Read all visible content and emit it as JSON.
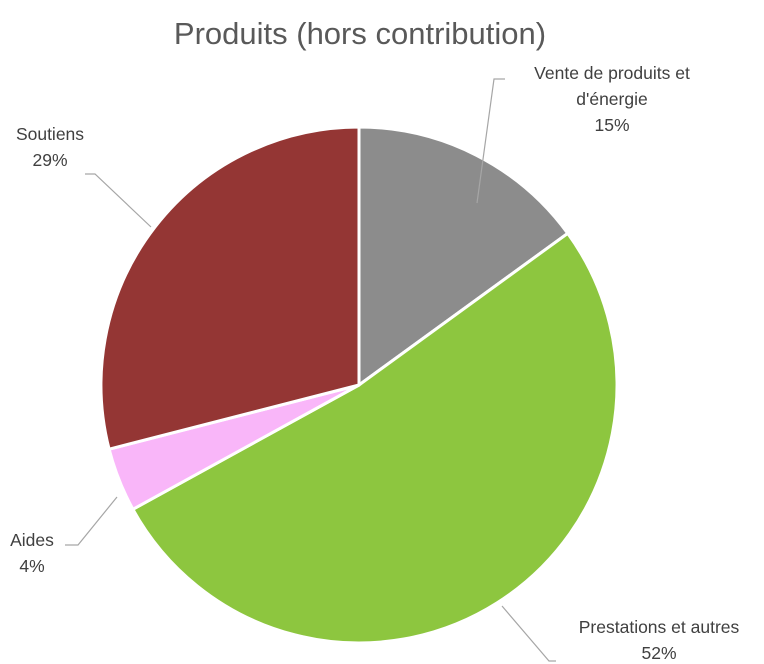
{
  "chart_data": {
    "type": "pie",
    "title": "Produits (hors contribution)",
    "slices": [
      {
        "name": "Vente de produits et d'énergie",
        "label_lines": [
          "Vente de produits et",
          "d'énergie"
        ],
        "value": 15,
        "percent_label": "15%",
        "color": "#8c8c8c"
      },
      {
        "name": "Prestations et autres",
        "label_lines": [
          "Prestations et autres"
        ],
        "value": 52,
        "percent_label": "52%",
        "color": "#8dc63f"
      },
      {
        "name": "Aides",
        "label_lines": [
          "Aides"
        ],
        "value": 4,
        "percent_label": "4%",
        "color": "#f9b6f9"
      },
      {
        "name": "Soutiens",
        "label_lines": [
          "Soutiens"
        ],
        "value": 29,
        "percent_label": "29%",
        "color": "#943634"
      }
    ],
    "start_angle": "12 o'clock",
    "direction": "clockwise",
    "legend": "none",
    "data_labels": "outside with leader lines"
  }
}
